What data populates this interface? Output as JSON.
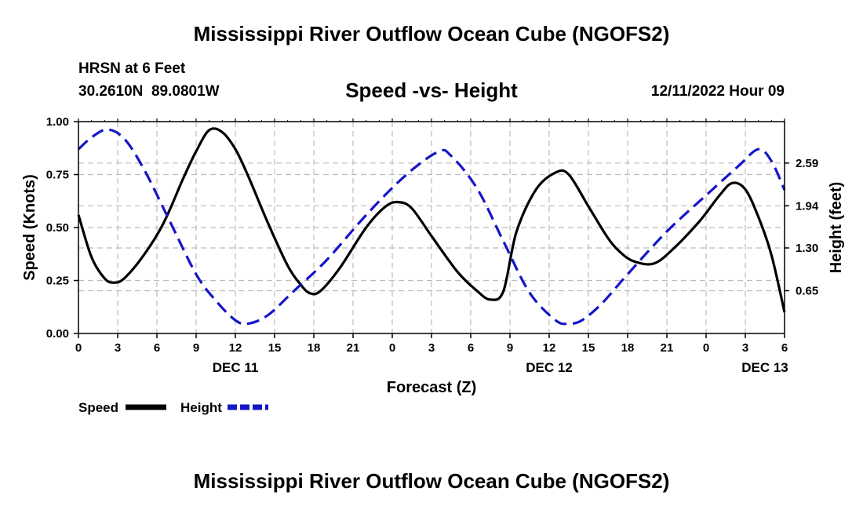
{
  "page": {
    "title": "Mississippi River Outflow Ocean Cube (NGOFS2)",
    "footer_title": "Mississippi River Outflow Ocean Cube (NGOFS2)",
    "station_name": "HRSN at 6 Feet",
    "station_coords": "30.2610N  89.0801W",
    "forecast_time": "12/11/2022 Hour 09"
  },
  "chart_data": {
    "type": "line",
    "title": "Speed -vs- Height",
    "xlabel": "Forecast (Z)",
    "ylabel": "Speed (Knots)",
    "y2label": "Height (feet)",
    "xlim": [
      0,
      54
    ],
    "ylim": [
      0,
      1.0
    ],
    "y2lim": [
      0,
      3.22
    ],
    "grid": true,
    "x_tick_labels": [
      "0",
      "3",
      "6",
      "9",
      "12",
      "15",
      "18",
      "21",
      "0",
      "3",
      "6",
      "9",
      "12",
      "15",
      "18",
      "21",
      "0",
      "3",
      "6"
    ],
    "date_labels": [
      {
        "label": "DEC 11",
        "hour": 12
      },
      {
        "label": "DEC 12",
        "hour": 36
      },
      {
        "label": "DEC 13",
        "hour": 52.5
      }
    ],
    "y_ticks": [
      {
        "value": 0.0,
        "label": "0.00"
      },
      {
        "value": 0.25,
        "label": "0.25"
      },
      {
        "value": 0.5,
        "label": "0.50"
      },
      {
        "value": 0.75,
        "label": "0.75"
      },
      {
        "value": 1.0,
        "label": "1.00"
      }
    ],
    "y2_ticks": [
      {
        "value": 0.65,
        "label": "0.65"
      },
      {
        "value": 1.3,
        "label": "1.30"
      },
      {
        "value": 1.94,
        "label": "1.94"
      },
      {
        "value": 2.59,
        "label": "2.59"
      }
    ],
    "legend": [
      {
        "label": "Speed",
        "color": "#000000",
        "dash": "solid"
      },
      {
        "label": "Height",
        "color": "#1515c8",
        "dash": "dashed"
      }
    ],
    "series": [
      {
        "name": "Speed",
        "axis": "left",
        "color": "#000000",
        "x": [
          0,
          1,
          2,
          2.7,
          3.5,
          5,
          6.5,
          8,
          9,
          10,
          11,
          12,
          13,
          14.5,
          16,
          17,
          17.7,
          18.5,
          20,
          22,
          23.5,
          24.5,
          25.5,
          27,
          29,
          30.5,
          31.5,
          32.5,
          33.5,
          35,
          36.5,
          37.5,
          39,
          40.5,
          41.5,
          42.5,
          44,
          45.5,
          47.5,
          49,
          50,
          51,
          52,
          53,
          54
        ],
        "values": [
          0.56,
          0.36,
          0.26,
          0.24,
          0.26,
          0.37,
          0.52,
          0.73,
          0.86,
          0.96,
          0.95,
          0.87,
          0.74,
          0.52,
          0.32,
          0.23,
          0.19,
          0.2,
          0.31,
          0.5,
          0.6,
          0.62,
          0.59,
          0.46,
          0.29,
          0.2,
          0.16,
          0.2,
          0.48,
          0.68,
          0.76,
          0.75,
          0.6,
          0.45,
          0.38,
          0.34,
          0.33,
          0.4,
          0.53,
          0.65,
          0.71,
          0.68,
          0.55,
          0.37,
          0.1
        ]
      },
      {
        "name": "Height",
        "axis": "right",
        "color": "#1515c8",
        "x": [
          0,
          1,
          2.2,
          3.5,
          5,
          7,
          9,
          10.5,
          12,
          13,
          14.5,
          16.5,
          19,
          22,
          25,
          27.5,
          28.5,
          30.5,
          32.5,
          34.5,
          36.5,
          37.5,
          38.5,
          40,
          42,
          45,
          48,
          50.5,
          52,
          53,
          54
        ],
        "values": [
          2.8,
          2.98,
          3.1,
          2.96,
          2.5,
          1.7,
          0.9,
          0.5,
          0.2,
          0.15,
          0.28,
          0.65,
          1.12,
          1.8,
          2.4,
          2.76,
          2.7,
          2.2,
          1.4,
          0.62,
          0.2,
          0.15,
          0.2,
          0.45,
          0.9,
          1.55,
          2.1,
          2.55,
          2.8,
          2.62,
          2.18
        ]
      }
    ]
  }
}
